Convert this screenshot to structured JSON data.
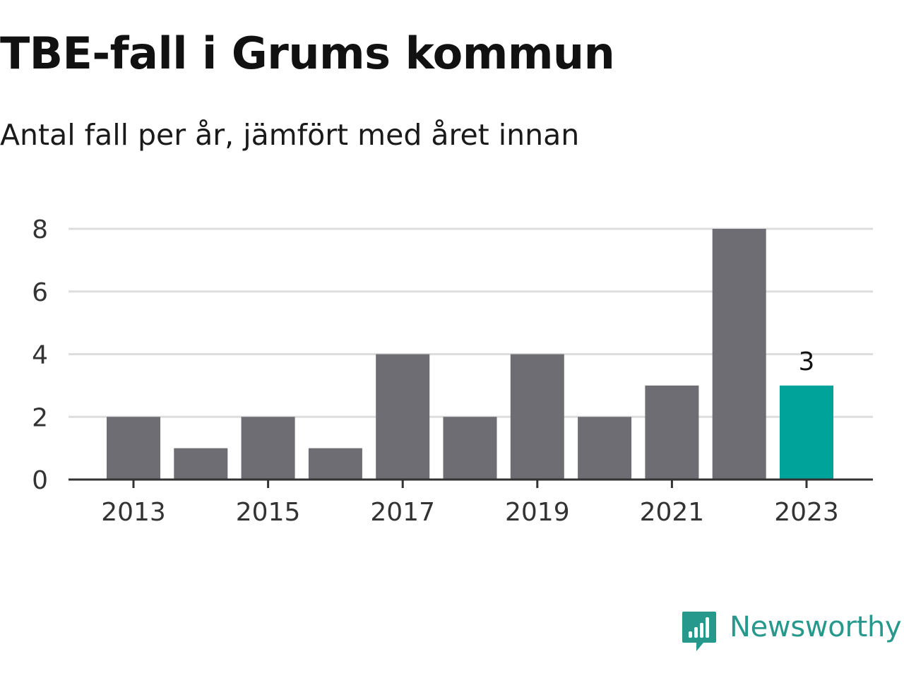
{
  "header": {
    "title": "TBE-fall i Grums kommun",
    "subtitle": "Antal fall per år, jämfört med året innan"
  },
  "chart_data": {
    "type": "bar",
    "title": "TBE-fall i Grums kommun",
    "subtitle": "Antal fall per år, jämfört med året innan",
    "xlabel": "",
    "ylabel": "",
    "categories": [
      "2013",
      "2014",
      "2015",
      "2016",
      "2017",
      "2018",
      "2019",
      "2020",
      "2021",
      "2022",
      "2023"
    ],
    "values": [
      2,
      1,
      2,
      1,
      4,
      2,
      4,
      2,
      3,
      8,
      3
    ],
    "x_tick_labels": [
      "2013",
      "2015",
      "2017",
      "2019",
      "2021",
      "2023"
    ],
    "y_ticks": [
      0,
      2,
      4,
      6,
      8
    ],
    "ylim": [
      0,
      8
    ],
    "grid": true,
    "highlight_category": "2023",
    "highlight_label": "3",
    "colors": {
      "bar": "#6e6d73",
      "highlight": "#00a39a",
      "grid": "#dddddd",
      "axis": "#333333",
      "tick_text": "#333333"
    }
  },
  "branding": {
    "logo_text": "Newsworthy",
    "logo_icon": "newsworthy-chart-bubble-icon",
    "color": "#27998c"
  }
}
